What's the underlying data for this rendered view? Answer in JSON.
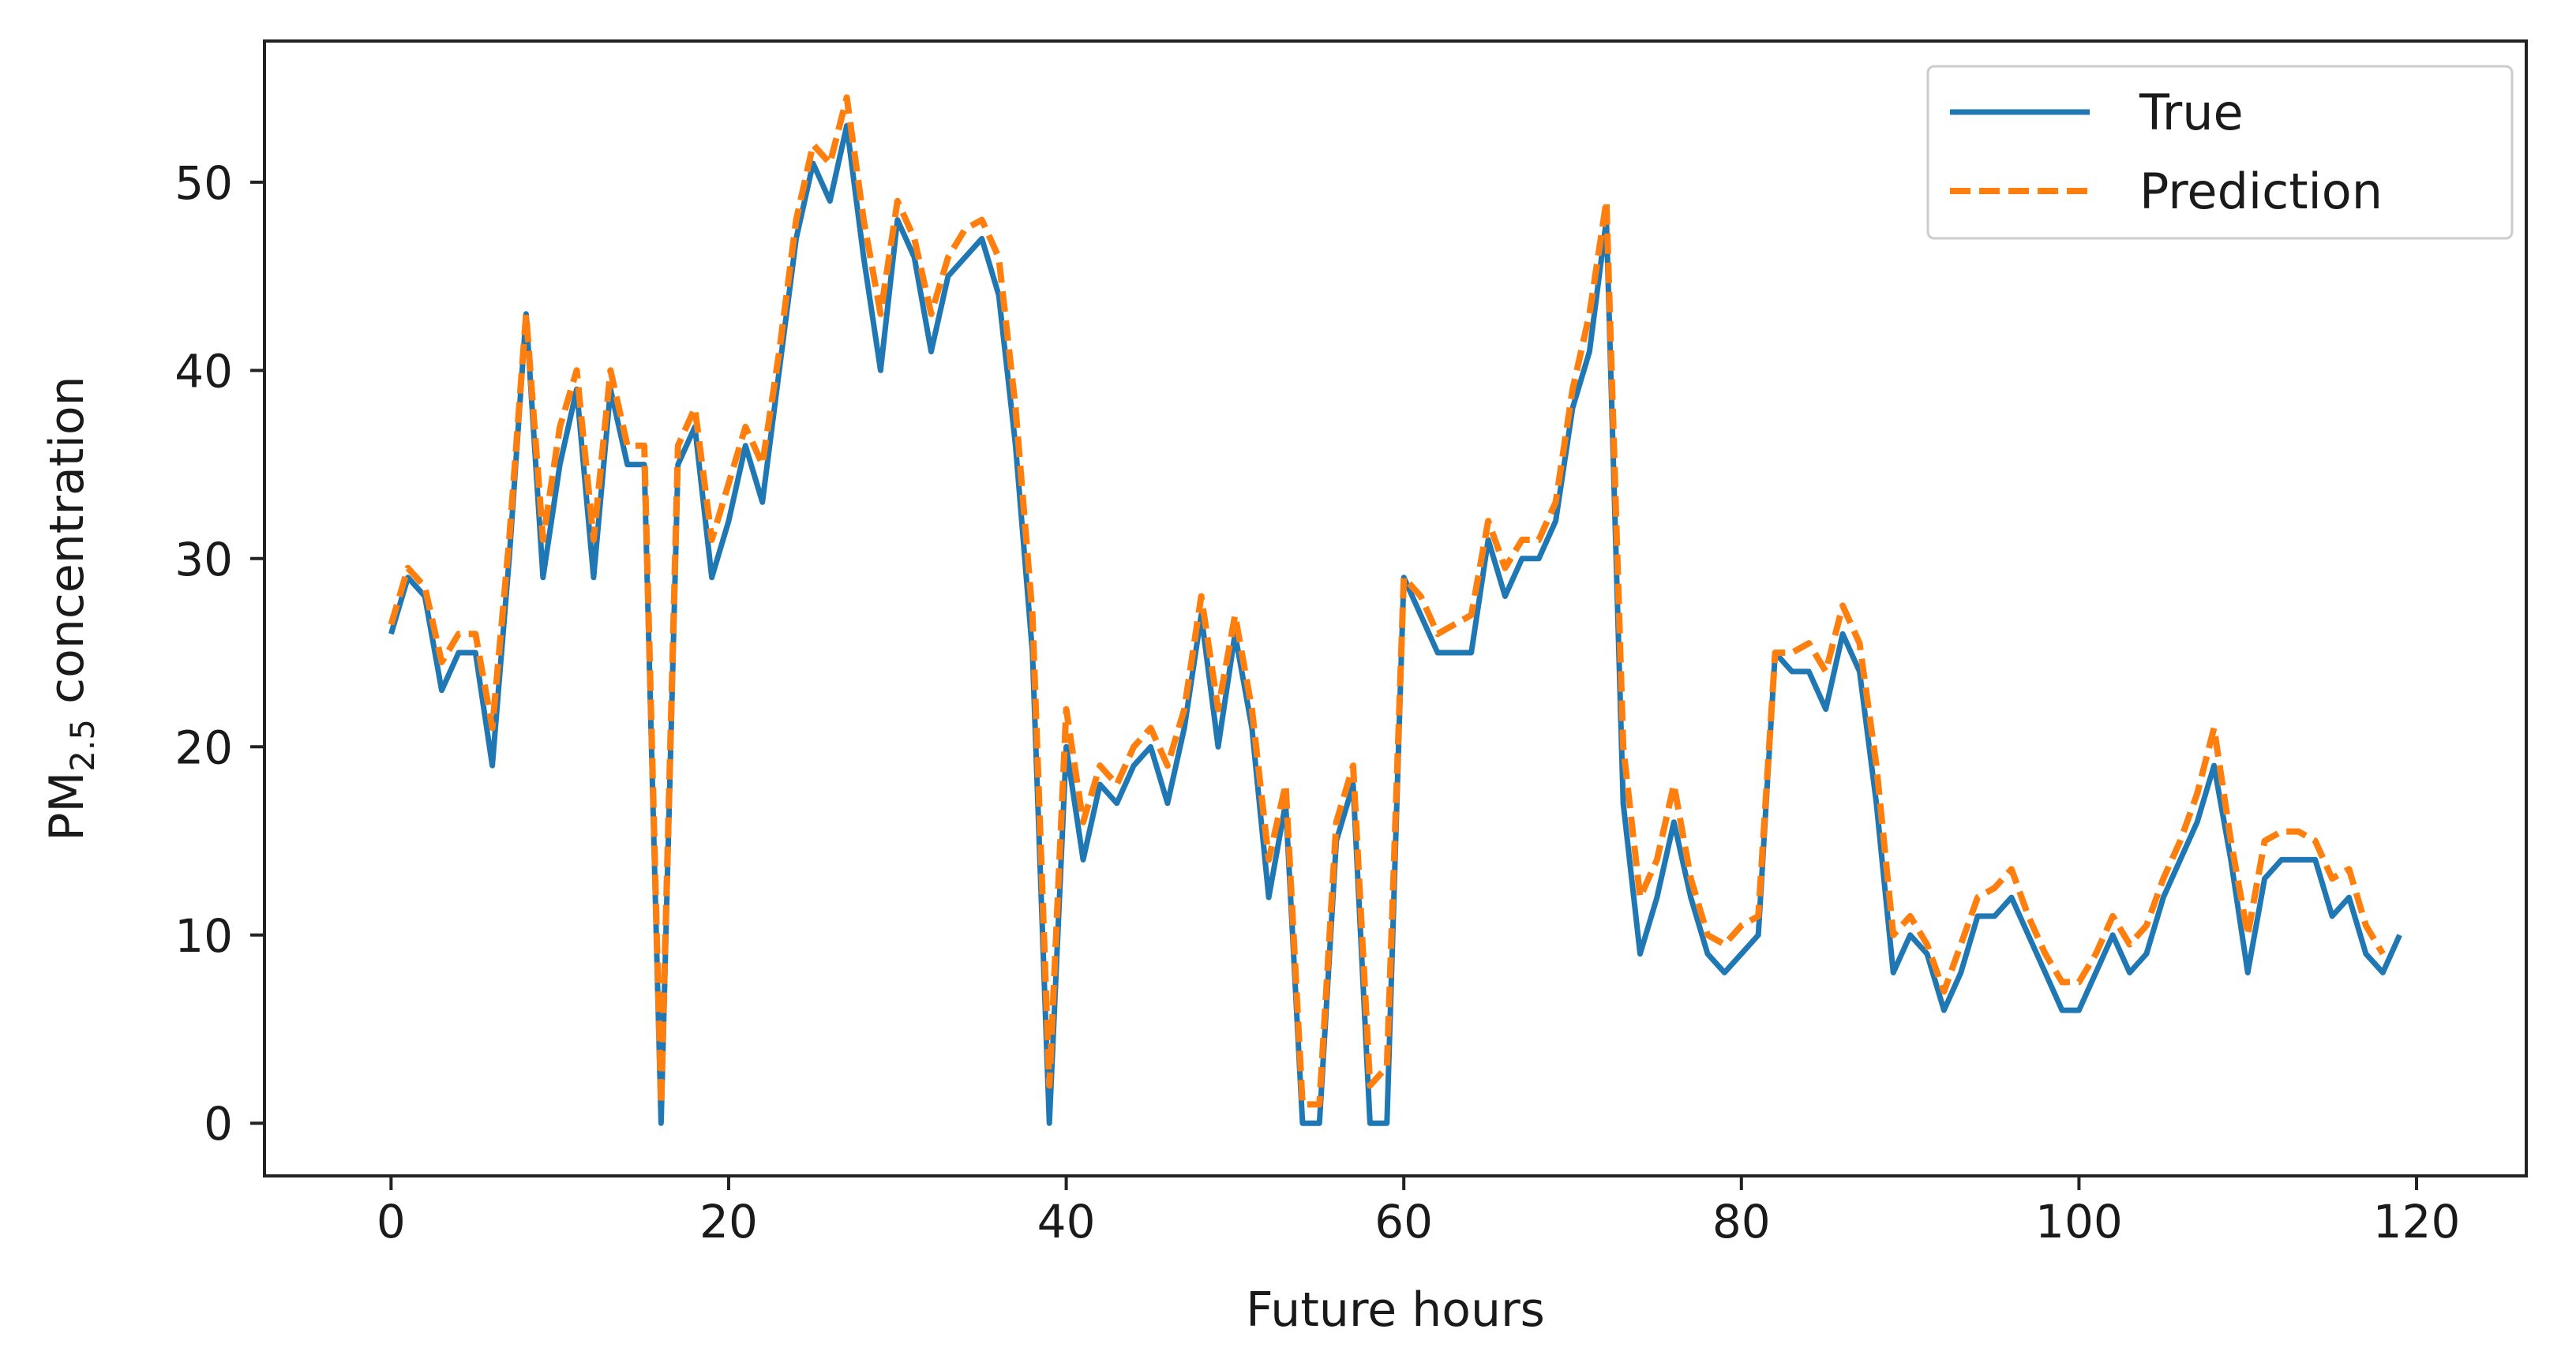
{
  "chart_data": {
    "type": "line",
    "title": "",
    "xlabel": "Future hours",
    "ylabel_main": "PM",
    "ylabel_sub": "2.5",
    "ylabel_rest": " concentration",
    "xlim": [
      -7.5,
      126.5
    ],
    "ylim": [
      -2.8,
      57.5
    ],
    "xticks": [
      0,
      20,
      40,
      60,
      80,
      100,
      120
    ],
    "yticks": [
      0,
      10,
      20,
      30,
      40,
      50
    ],
    "grid": false,
    "legend_position": "top-right",
    "series": [
      {
        "name": "True",
        "color": "#1f77b4",
        "style": "solid",
        "values": [
          26,
          29,
          28,
          23,
          25,
          25,
          19,
          30,
          43,
          29,
          35,
          39,
          29,
          39,
          35,
          35,
          0,
          35,
          37,
          29,
          32,
          36,
          33,
          40,
          47,
          51,
          49,
          53,
          46,
          40,
          48,
          46,
          41,
          45,
          46,
          47,
          44,
          36,
          25,
          0,
          20,
          14,
          18,
          17,
          19,
          20,
          17,
          21,
          27,
          20,
          26,
          21,
          12,
          17,
          0,
          0,
          15,
          18,
          0,
          0,
          29,
          27,
          25,
          25,
          25,
          31,
          28,
          30,
          30,
          32,
          38,
          41,
          48,
          17,
          9,
          12,
          16,
          12,
          9,
          8,
          9,
          10,
          25,
          24,
          24,
          22,
          26,
          24,
          17,
          8,
          10,
          9,
          6,
          8,
          11,
          11,
          12,
          10,
          8,
          6,
          6,
          8,
          10,
          8,
          9,
          12,
          14,
          16,
          19,
          14,
          8,
          13,
          14,
          14,
          14,
          11,
          12,
          9,
          8,
          10
        ]
      },
      {
        "name": "Prediction",
        "color": "#ff7f0e",
        "style": "dashed",
        "values": [
          26.5,
          29.5,
          28.5,
          24.5,
          26,
          26,
          21,
          31,
          43,
          31,
          37,
          40,
          31,
          40,
          36,
          36,
          1,
          36,
          38,
          31,
          34,
          37,
          35,
          41,
          48,
          52,
          51,
          54.5,
          48,
          43,
          49,
          47,
          43,
          46,
          47.5,
          48,
          46,
          38,
          27,
          2,
          22,
          16,
          19,
          18,
          20,
          21,
          19,
          22,
          28,
          22,
          27,
          22,
          14,
          18,
          1,
          1,
          16,
          19,
          2,
          3,
          29,
          28,
          26,
          26.5,
          27,
          32,
          29.5,
          31,
          31,
          33,
          39,
          43,
          49,
          20,
          12,
          14,
          18,
          13,
          10,
          9.5,
          10.5,
          11,
          25,
          25,
          25.5,
          24,
          27.5,
          25.5,
          19,
          10,
          11,
          9.5,
          7,
          9.5,
          12,
          12.5,
          13.5,
          11,
          9,
          7.5,
          7.5,
          9,
          11,
          9.5,
          10.5,
          13,
          15,
          17.5,
          21,
          15,
          10,
          15,
          15.5,
          15.5,
          15,
          13,
          13.5,
          10.5,
          9
        ]
      }
    ]
  }
}
